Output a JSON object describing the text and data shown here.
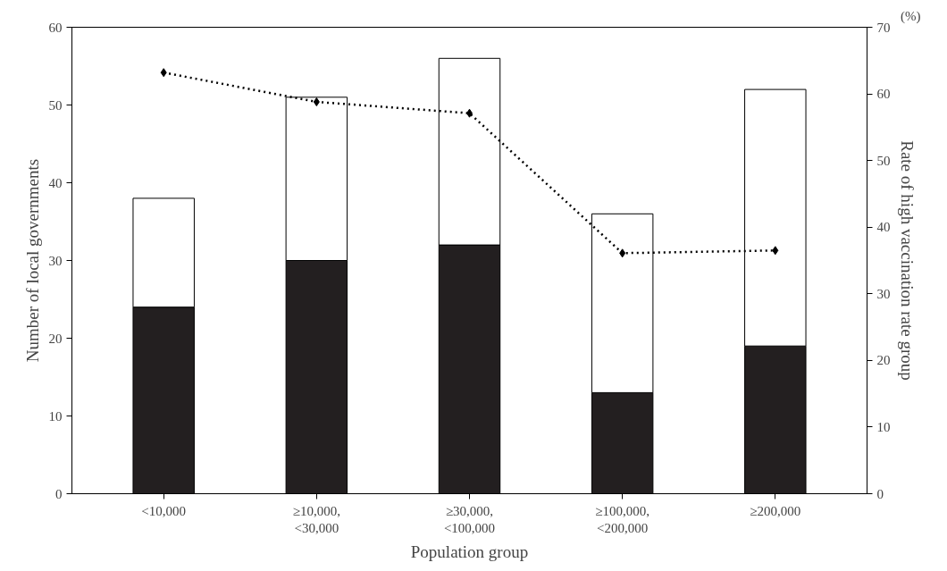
{
  "chart_data": {
    "type": "bar",
    "stacked": true,
    "xlabel": "Population group",
    "ylabel": "Number of local governments",
    "y2label": "Rate of high vaccination rate group",
    "categories": [
      "<10,000",
      "≥10,000,\n<30,000",
      "≥30,000,\n<100,000",
      "≥100,000,\n<200,000",
      "≥200,000"
    ],
    "series": [
      {
        "color": "#231f20",
        "values": [
          24,
          30,
          32,
          13,
          19
        ]
      },
      {
        "color": "#ffffff",
        "values": [
          14,
          21,
          24,
          23,
          33
        ]
      },
      {
        "type": "line",
        "axis": "y2",
        "color": "#000000",
        "marker": "diamond",
        "line_style": "dotted",
        "values": [
          63.2,
          58.8,
          57.1,
          36.1,
          36.5
        ]
      }
    ],
    "ylim": [
      0,
      60
    ],
    "yticks": [
      0,
      10,
      20,
      30,
      40,
      50,
      60
    ],
    "y2lim": [
      0,
      70
    ],
    "y2ticks": [
      0,
      10,
      20,
      30,
      40,
      50,
      60,
      70
    ],
    "annotations": [
      "(%)"
    ],
    "grid": false
  }
}
